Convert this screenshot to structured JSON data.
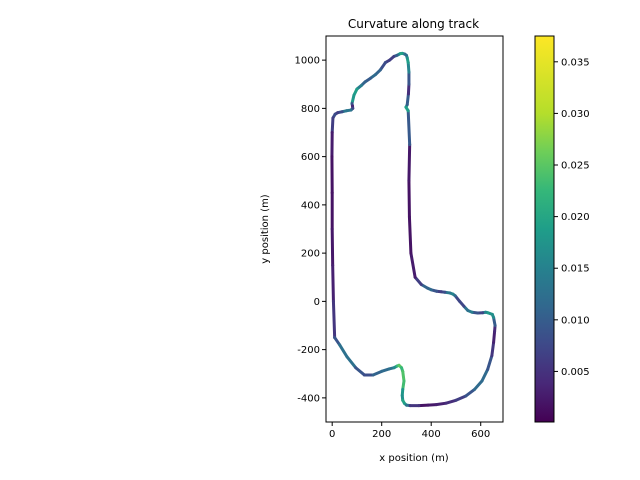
{
  "chart_data": {
    "type": "line",
    "title": "Curvature along track",
    "xlabel": "x position (m)",
    "ylabel": "y position (m)",
    "xlim": [
      -25,
      690
    ],
    "ylim": [
      -500,
      1100
    ],
    "x_ticks": [
      0,
      200,
      400,
      600
    ],
    "y_ticks": [
      -400,
      -200,
      0,
      200,
      400,
      600,
      800,
      1000
    ],
    "grid": false,
    "track": {
      "x": [
        350,
        388,
        420,
        460,
        500,
        540,
        575,
        605,
        628,
        645,
        652,
        656,
        658,
        652,
        647,
        628,
        620,
        608,
        588,
        565,
        548,
        532,
        515,
        497,
        488,
        475,
        455,
        440,
        422,
        400,
        385,
        360,
        335,
        318,
        312,
        310,
        313,
        307,
        298,
        303,
        308,
        310,
        310,
        307,
        303,
        300,
        293,
        283,
        275,
        268,
        262,
        249,
        232,
        215,
        195,
        175,
        155,
        133,
        118,
        100,
        88,
        80,
        82,
        83,
        76,
        57,
        40,
        22,
        12,
        3,
        0,
        -1,
        0,
        0,
        2,
        5,
        10,
        30,
        60,
        95,
        130,
        165,
        200,
        230,
        250,
        262,
        270,
        280,
        285,
        290,
        285,
        283,
        285,
        292,
        300,
        315
      ],
      "y": [
        -432,
        -430,
        -428,
        -422,
        -410,
        -392,
        -365,
        -330,
        -282,
        -225,
        -170,
        -125,
        -100,
        -67,
        -54,
        -47,
        -45,
        -47,
        -48,
        -45,
        -38,
        -20,
        0,
        23,
        30,
        35,
        38,
        40,
        42,
        48,
        55,
        70,
        100,
        200,
        350,
        500,
        650,
        790,
        805,
        815,
        860,
        900,
        950,
        990,
        1010,
        1020,
        1025,
        1028,
        1027,
        1023,
        1020,
        1015,
        1000,
        990,
        960,
        940,
        925,
        910,
        895,
        880,
        855,
        820,
        810,
        800,
        793,
        790,
        786,
        782,
        776,
        760,
        700,
        600,
        450,
        300,
        150,
        0,
        -150,
        -180,
        -230,
        -275,
        -305,
        -305,
        -290,
        -280,
        -275,
        -268,
        -265,
        -275,
        -290,
        -330,
        -365,
        -390,
        -410,
        -423,
        -430,
        -432
      ],
      "curvature": [
        0.002,
        0.002,
        0.003,
        0.004,
        0.006,
        0.008,
        0.012,
        0.014,
        0.012,
        0.008,
        0.004,
        0.003,
        0.006,
        0.016,
        0.02,
        0.018,
        0.024,
        0.01,
        0.006,
        0.014,
        0.018,
        0.01,
        0.006,
        0.01,
        0.016,
        0.018,
        0.012,
        0.006,
        0.008,
        0.012,
        0.014,
        0.01,
        0.004,
        0.002,
        0.002,
        0.002,
        0.003,
        0.018,
        0.024,
        0.018,
        0.004,
        0.006,
        0.014,
        0.02,
        0.022,
        0.016,
        0.01,
        0.018,
        0.024,
        0.02,
        0.015,
        0.008,
        0.006,
        0.008,
        0.01,
        0.014,
        0.012,
        0.01,
        0.014,
        0.018,
        0.024,
        0.016,
        0.004,
        0.004,
        0.012,
        0.018,
        0.012,
        0.006,
        0.008,
        0.01,
        0.004,
        0.002,
        0.002,
        0.002,
        0.003,
        0.004,
        0.008,
        0.012,
        0.016,
        0.012,
        0.008,
        0.01,
        0.014,
        0.012,
        0.016,
        0.02,
        0.03,
        0.026,
        0.024,
        0.03,
        0.022,
        0.018,
        0.02,
        0.024,
        0.018,
        0.01
      ]
    },
    "colorbar": {
      "colormap": "viridis",
      "min": 0.0001,
      "max": 0.0375,
      "ticks": [
        0.005,
        0.01,
        0.015,
        0.02,
        0.025,
        0.03,
        0.035
      ],
      "tick_labels": [
        "0.005",
        "0.010",
        "0.015",
        "0.020",
        "0.025",
        "0.030",
        "0.035"
      ]
    }
  }
}
